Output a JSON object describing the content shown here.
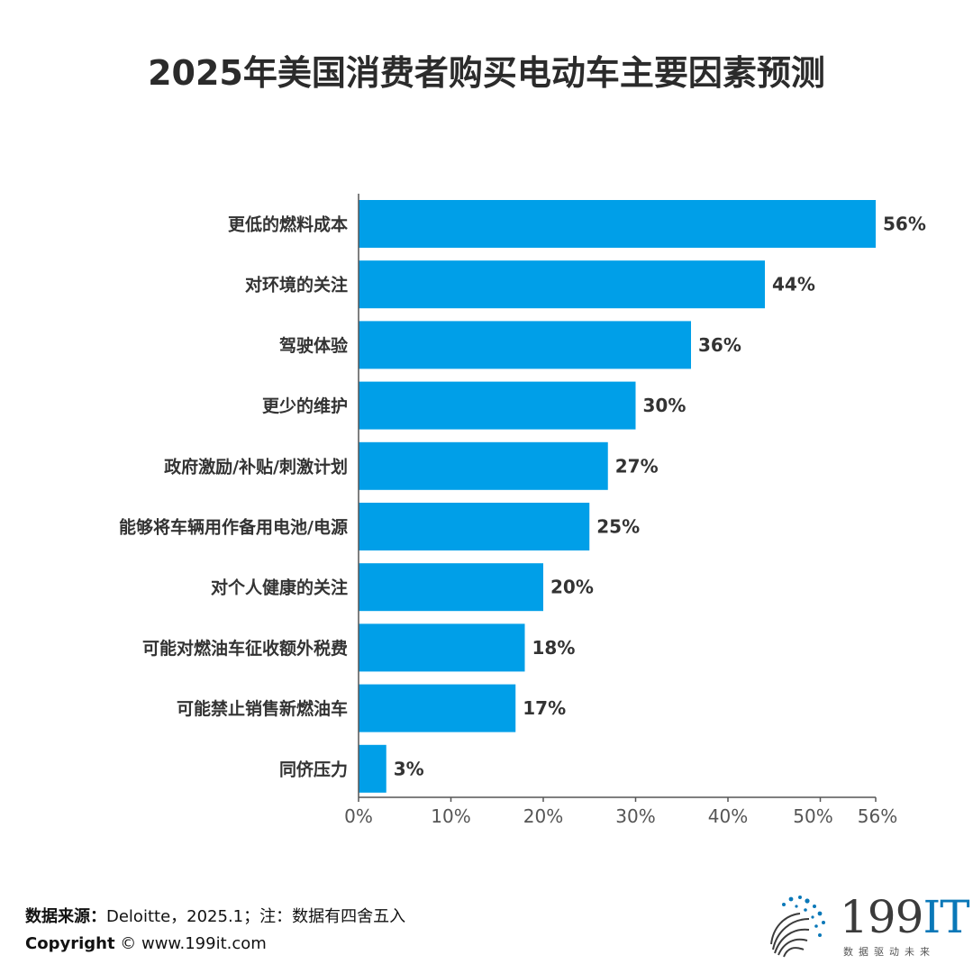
{
  "title": "2025年美国消费者购买电动车主要因素预测",
  "chart_data": {
    "type": "bar",
    "orientation": "horizontal",
    "title": "2025年美国消费者购买电动车主要因素预测",
    "categories": [
      "更低的燃料成本",
      "对环境的关注",
      "驾驶体验",
      "更少的维护",
      "政府激励/补贴/刺激计划",
      "能够将车辆用作备用电池/电源",
      "对个人健康的关注",
      "可能对燃油车征收额外税费",
      "可能禁止销售新燃油车",
      "同侪压力"
    ],
    "values": [
      56,
      44,
      36,
      30,
      27,
      25,
      20,
      18,
      17,
      3
    ],
    "value_labels": [
      "56%",
      "44%",
      "36%",
      "30%",
      "27%",
      "25%",
      "20%",
      "18%",
      "17%",
      "3%"
    ],
    "xlim": [
      0,
      56
    ],
    "x_ticks": [
      0,
      10,
      20,
      30,
      40,
      50,
      56
    ],
    "x_tick_labels": [
      "0%",
      "10%",
      "20%",
      "30%",
      "40%",
      "50%",
      "56%"
    ],
    "bar_color": "#009fe8",
    "grid": false,
    "legend": "none"
  },
  "footer": {
    "source_label": "数据来源：",
    "source_text": "Deloitte，2025.1；注：数据有四舍五入",
    "copyright_label": "Copyright",
    "copyright_text": " © www.199it.com"
  },
  "logo": {
    "number": "199",
    "suffix": "IT",
    "tagline": "数据驱动未来",
    "accent_color": "#0a78b8"
  }
}
